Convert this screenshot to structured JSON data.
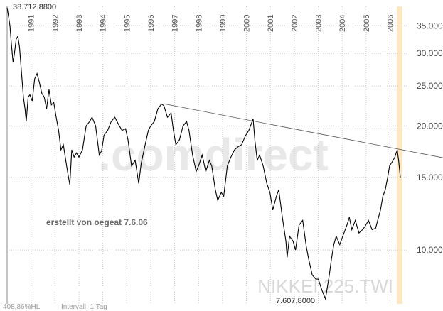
{
  "chart_data": {
    "type": "line",
    "title": "NIKKEI 225.TWI",
    "watermark": ".comdirect",
    "annotation": "erstellt von oegeat 7.6.06",
    "max_label": "38.712,8800",
    "min_label": "7.607,8000",
    "range_label": "408,86%HL",
    "interval_label": "Intervall: 1 Tag",
    "log_scale": true,
    "grid": true,
    "color": "#000000",
    "trend_color": "#555555",
    "xlim": [
      1990,
      2006.43
    ],
    "xticks": [
      1991,
      1992,
      1993,
      1994,
      1995,
      1996,
      1997,
      1998,
      1999,
      2000,
      2001,
      2002,
      2003,
      2004,
      2005,
      2006
    ],
    "ylim": [
      7400,
      39000
    ],
    "yticks": [
      {
        "value": 10000,
        "label": "10.000"
      },
      {
        "value": 15000,
        "label": "15.000"
      },
      {
        "value": 20000,
        "label": "20.000"
      },
      {
        "value": 25000,
        "label": "25.000"
      },
      {
        "value": 30000,
        "label": "30.000"
      },
      {
        "value": 35000,
        "label": "35.000"
      }
    ],
    "trendline": {
      "x": [
        1996.54,
        2008.2
      ],
      "values": [
        22640,
        16750
      ]
    },
    "x": [
      1990.0,
      1990.05,
      1990.12,
      1990.18,
      1990.25,
      1990.3,
      1990.38,
      1990.45,
      1990.52,
      1990.6,
      1990.68,
      1990.75,
      1990.8,
      1990.88,
      1990.95,
      1991.05,
      1991.15,
      1991.25,
      1991.35,
      1991.45,
      1991.55,
      1991.65,
      1991.75,
      1991.85,
      1991.95,
      1992.05,
      1992.15,
      1992.25,
      1992.35,
      1992.45,
      1992.55,
      1992.62,
      1992.7,
      1992.8,
      1992.9,
      1993.0,
      1993.15,
      1993.3,
      1993.45,
      1993.55,
      1993.7,
      1993.85,
      1993.95,
      1994.05,
      1994.2,
      1994.35,
      1994.5,
      1994.65,
      1994.8,
      1994.95,
      1995.05,
      1995.2,
      1995.35,
      1995.5,
      1995.6,
      1995.75,
      1995.9,
      1996.0,
      1996.15,
      1996.3,
      1996.45,
      1996.55,
      1996.7,
      1996.85,
      1996.95,
      1997.05,
      1997.2,
      1997.35,
      1997.5,
      1997.6,
      1997.75,
      1997.9,
      1998.0,
      1998.15,
      1998.3,
      1998.45,
      1998.55,
      1998.7,
      1998.8,
      1998.95,
      1999.05,
      1999.2,
      1999.35,
      1999.5,
      1999.65,
      1999.8,
      1999.95,
      2000.1,
      2000.28,
      2000.35,
      2000.45,
      2000.55,
      2000.7,
      2000.85,
      2000.98,
      2001.1,
      2001.25,
      2001.35,
      2001.5,
      2001.65,
      2001.7,
      2001.8,
      2001.95,
      2002.05,
      2002.2,
      2002.35,
      2002.5,
      2002.6,
      2002.75,
      2002.9,
      2003.0,
      2003.15,
      2003.3,
      2003.45,
      2003.55,
      2003.65,
      2003.75,
      2003.9,
      2004.0,
      2004.2,
      2004.3,
      2004.4,
      2004.55,
      2004.7,
      2004.85,
      2004.95,
      2005.1,
      2005.25,
      2005.4,
      2005.5,
      2005.6,
      2005.7,
      2005.8,
      2005.9,
      2005.98,
      2006.1,
      2006.2,
      2006.3,
      2006.36,
      2006.43
    ],
    "values": [
      38712,
      37200,
      35000,
      31500,
      28500,
      29800,
      32500,
      33000,
      31000,
      27000,
      23500,
      22000,
      20500,
      23500,
      23800,
      23000,
      26000,
      26800,
      25500,
      24000,
      23500,
      22000,
      24500,
      22500,
      22800,
      21000,
      19500,
      17500,
      18000,
      16500,
      15200,
      14400,
      17500,
      16800,
      17200,
      16800,
      17500,
      20000,
      20500,
      21000,
      20000,
      17000,
      17400,
      19000,
      19500,
      20500,
      21000,
      20200,
      19500,
      19700,
      18500,
      16000,
      16500,
      14500,
      16200,
      17800,
      19500,
      20000,
      20500,
      22000,
      22600,
      22400,
      21000,
      21500,
      19500,
      18000,
      18500,
      20000,
      20500,
      19500,
      17000,
      15500,
      16000,
      17000,
      15500,
      16500,
      16000,
      14000,
      13200,
      13800,
      13500,
      16000,
      16800,
      17500,
      17800,
      18000,
      18900,
      19500,
      20800,
      18500,
      16500,
      17000,
      16000,
      14500,
      13800,
      12500,
      13500,
      14000,
      12000,
      10500,
      9600,
      10800,
      10500,
      10000,
      11500,
      11800,
      10200,
      9500,
      8700,
      8500,
      8500,
      8000,
      7607.8,
      8600,
      9500,
      10300,
      10800,
      10300,
      10700,
      11500,
      12000,
      11200,
      11800,
      11000,
      11200,
      11400,
      11800,
      11200,
      11300,
      11900,
      12500,
      13500,
      14000,
      15000,
      16000,
      16400,
      16800,
      17500,
      16500,
      15000
    ]
  }
}
